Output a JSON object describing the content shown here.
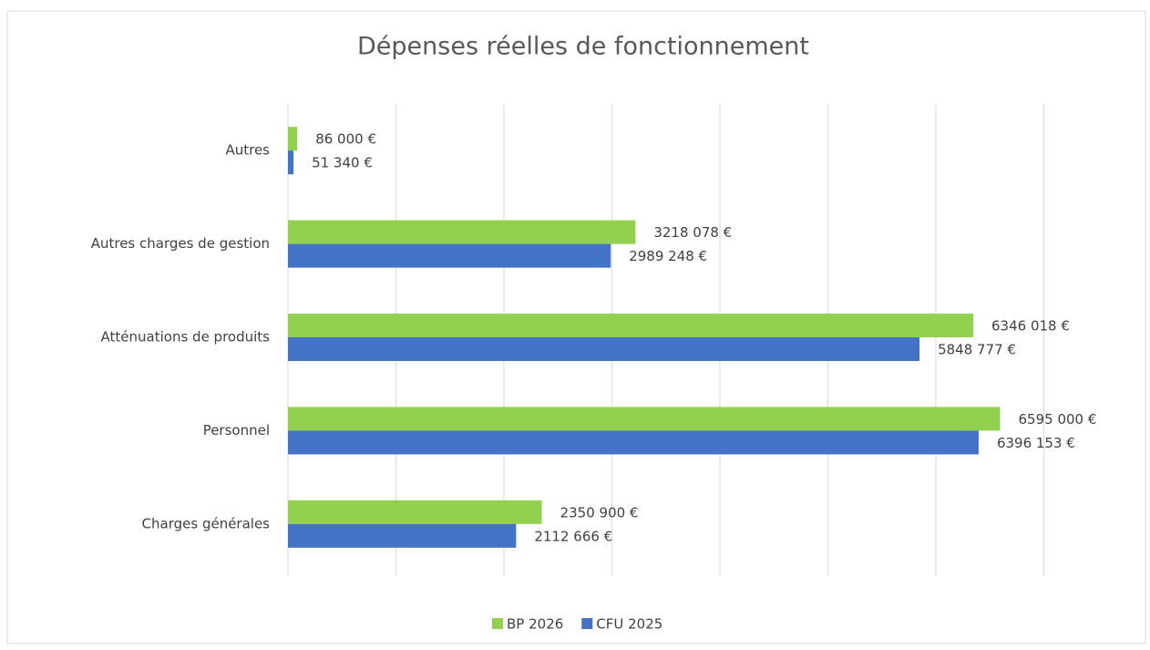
{
  "chart_data": {
    "type": "bar",
    "orientation": "horizontal",
    "title": "Dépenses réelles de fonctionnement",
    "categories": [
      "Autres",
      "Autres charges de gestion",
      "Atténuations de produits",
      "Personnel",
      "Charges générales"
    ],
    "series": [
      {
        "name": "BP 2026",
        "color": "#92d050",
        "values": [
          86000,
          3218078,
          6346018,
          6595000,
          2350900
        ],
        "value_labels": [
          "86 000 €",
          "3218 078 €",
          "6346 018 €",
          "6595 000 €",
          "2350 900 €"
        ]
      },
      {
        "name": "CFU 2025",
        "color": "#4472c4",
        "values": [
          51340,
          2989248,
          5848777,
          6396153,
          2112666
        ],
        "value_labels": [
          "51 340 €",
          "2989 248 €",
          "5848 777 €",
          "6396 153 €",
          "2112 666 €"
        ]
      }
    ],
    "xlim": [
      0,
      7000000
    ],
    "xticks": [
      0,
      1000000,
      2000000,
      3000000,
      4000000,
      5000000,
      6000000,
      7000000
    ],
    "grid": true,
    "legend": "bottom"
  }
}
